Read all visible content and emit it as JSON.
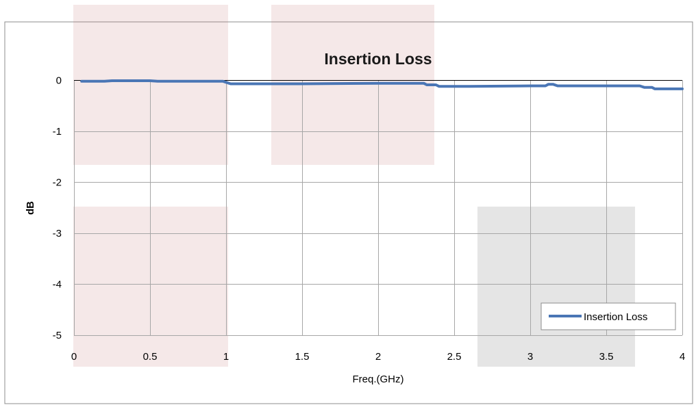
{
  "chart_data": {
    "type": "line",
    "title": "Insertion Loss",
    "xlabel": "Freq.(GHz)",
    "ylabel": "dB",
    "xlim": [
      0,
      4
    ],
    "ylim": [
      -5,
      0.5
    ],
    "x_ticks": [
      0,
      0.5,
      1,
      1.5,
      2,
      2.5,
      3,
      3.5,
      4
    ],
    "x_tick_labels": [
      "0",
      "0.5",
      "1",
      "1.5",
      "2",
      "2.5",
      "3",
      "3.5",
      "4"
    ],
    "y_ticks": [
      0,
      -1,
      -2,
      -3,
      -4,
      -5
    ],
    "y_tick_labels": [
      "0",
      "-1",
      "-2",
      "-3",
      "-4",
      "-5"
    ],
    "grid": true,
    "legend_position": "bottom-right",
    "series": [
      {
        "name": "Insertion Loss",
        "color": "#4a76b5",
        "x": [
          0.05,
          0.2,
          0.25,
          0.5,
          0.55,
          0.98,
          1.0,
          1.03,
          1.5,
          2.0,
          2.3,
          2.32,
          2.38,
          2.4,
          2.6,
          3.0,
          3.1,
          3.12,
          3.15,
          3.18,
          3.5,
          3.72,
          3.75,
          3.8,
          3.82,
          4.0
        ],
        "y": [
          -0.02,
          -0.02,
          -0.01,
          -0.01,
          -0.02,
          -0.02,
          -0.04,
          -0.07,
          -0.07,
          -0.06,
          -0.06,
          -0.09,
          -0.09,
          -0.12,
          -0.12,
          -0.11,
          -0.11,
          -0.08,
          -0.08,
          -0.11,
          -0.11,
          -0.11,
          -0.14,
          -0.14,
          -0.17,
          -0.17
        ]
      }
    ]
  }
}
